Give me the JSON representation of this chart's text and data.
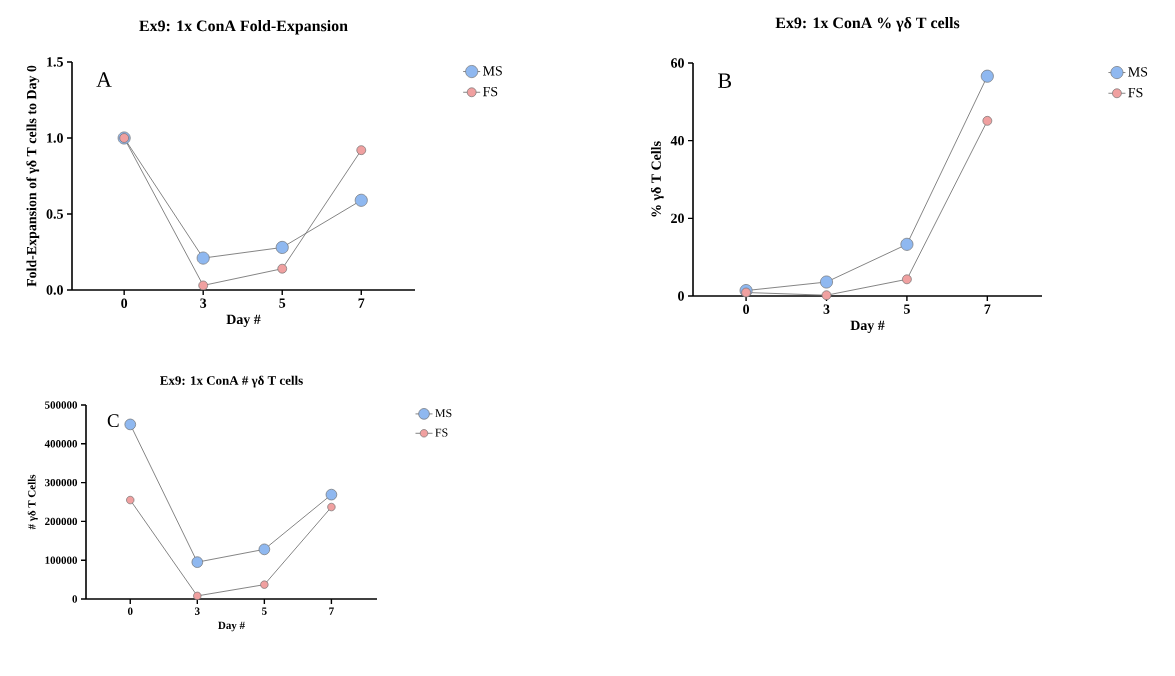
{
  "chart_data": [
    {
      "type": "line",
      "title": "Ex9: 1x ConA Fold-Expansion",
      "xlabel": "Day #",
      "ylabel": "Fold-Expansion of γδ T cells to Day 0",
      "annotations": [
        "A"
      ],
      "categories": [
        "0",
        "3",
        "5",
        "7"
      ],
      "ylim": [
        0,
        1.5
      ],
      "yticks": [
        {
          "value": 0,
          "label": "0.0"
        },
        {
          "value": 0.5,
          "label": "0.5"
        },
        {
          "value": 1,
          "label": "1.0"
        },
        {
          "value": 1.5,
          "label": "1.5"
        }
      ],
      "marker": "circle",
      "legend": "top right",
      "series": [
        {
          "name": "MS",
          "color": "#8fb8f0",
          "values": [
            1.0,
            0.21,
            0.28,
            0.59
          ]
        },
        {
          "name": "FS",
          "color": "#f0a0a0",
          "values": [
            1.0,
            0.03,
            0.14,
            0.92
          ]
        }
      ]
    },
    {
      "type": "line",
      "title": "Ex9: 1x ConA % γδ T cells",
      "xlabel": "Day #",
      "ylabel": "% γδ T Cells",
      "annotations": [
        "B"
      ],
      "categories": [
        "0",
        "3",
        "5",
        "7"
      ],
      "ylim": [
        0,
        60
      ],
      "yticks": [
        0,
        20,
        40,
        60
      ],
      "marker": "circle",
      "legend": "top right",
      "series": [
        {
          "name": "MS",
          "color": "#8fb8f0",
          "values": [
            1.4,
            3.6,
            13.3,
            56.6
          ]
        },
        {
          "name": "FS",
          "color": "#f0a0a0",
          "values": [
            0.9,
            0.2,
            4.3,
            45.1
          ]
        }
      ]
    },
    {
      "type": "line",
      "title": "Ex9: 1x ConA # γδ T cells",
      "xlabel": "Day #",
      "ylabel": "# γδ T Cells",
      "annotations": [
        "C"
      ],
      "categories": [
        "0",
        "3",
        "5",
        "7"
      ],
      "ylim": [
        0,
        500000
      ],
      "yticks": [
        0,
        100000,
        200000,
        300000,
        400000,
        500000
      ],
      "marker": "circle",
      "legend": "top right",
      "series": [
        {
          "name": "MS",
          "color": "#8fb8f0",
          "values": [
            450000,
            95000,
            128000,
            269000
          ]
        },
        {
          "name": "FS",
          "color": "#f0a0a0",
          "values": [
            255000,
            8000,
            37000,
            237000
          ]
        }
      ]
    }
  ]
}
